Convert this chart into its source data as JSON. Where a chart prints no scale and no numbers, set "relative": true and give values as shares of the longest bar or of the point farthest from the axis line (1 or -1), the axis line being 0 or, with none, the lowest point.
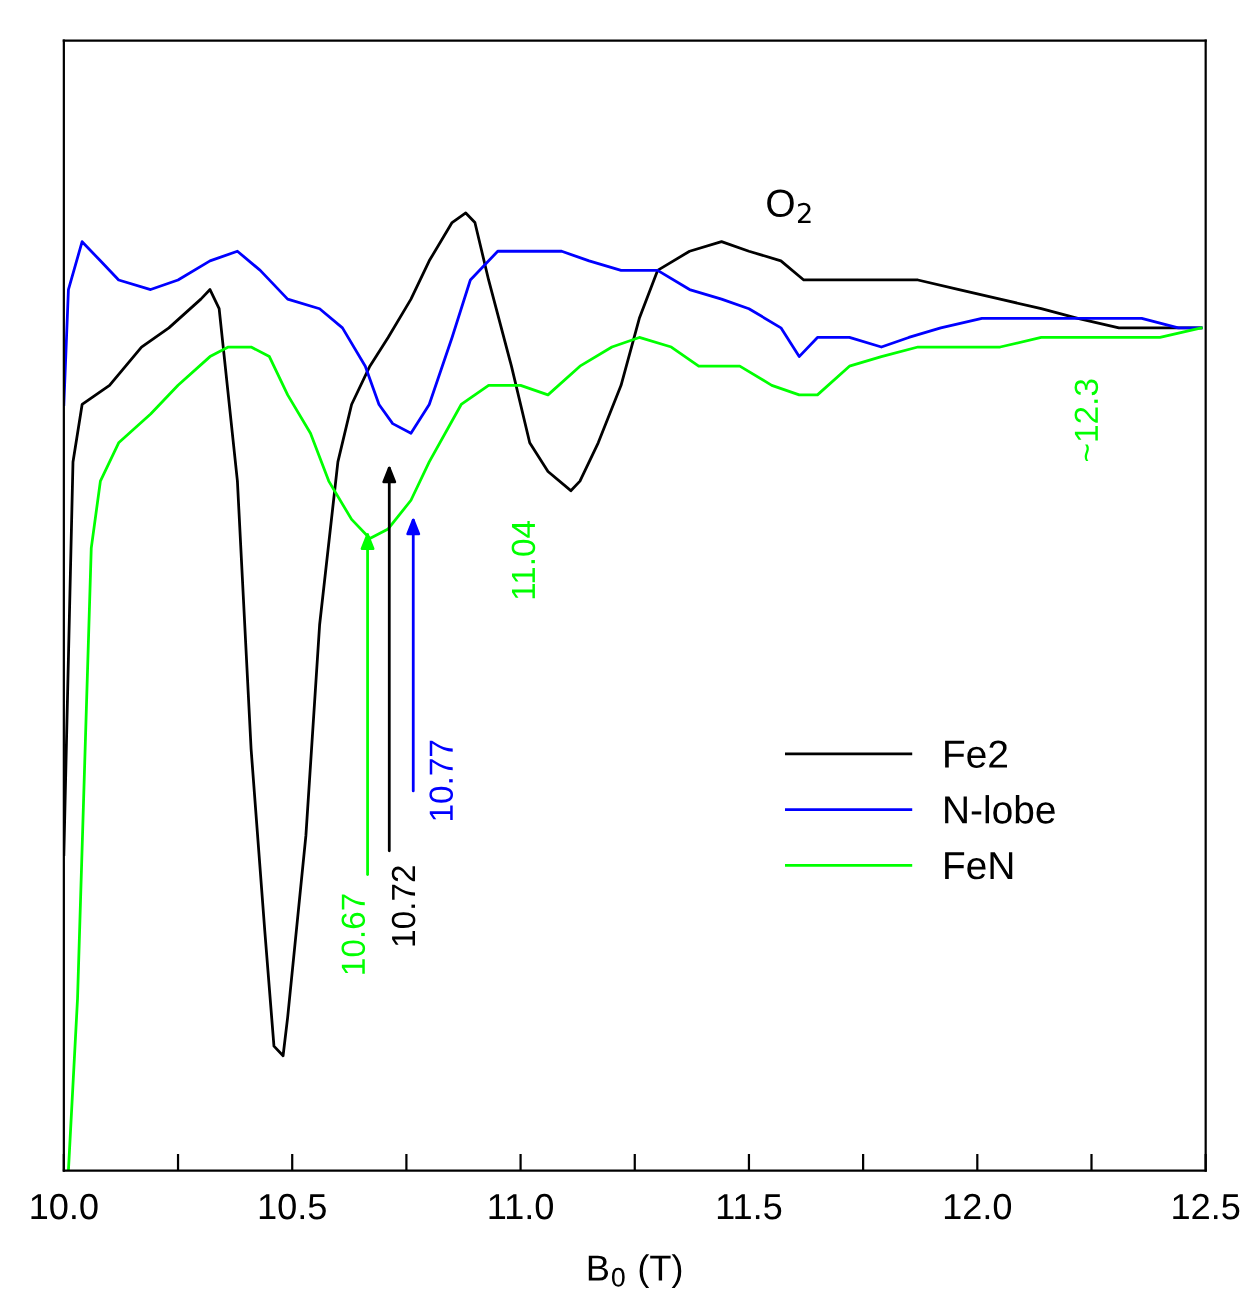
{
  "chart_data": {
    "type": "line",
    "relative": true,
    "xlabel": "B$_{0}$ (T)",
    "xlim": [
      10.0,
      12.5
    ],
    "xticks": [
      {
        "value": 10,
        "label": "10.0"
      },
      {
        "value": 10.25,
        "label": null
      },
      10.5,
      {
        "value": 10.75,
        "label": null
      },
      {
        "value": 11,
        "label": "11.0"
      },
      {
        "value": 11.25,
        "label": null
      },
      11.5,
      {
        "value": 11.75,
        "label": null
      },
      {
        "value": 12,
        "label": "12.0"
      },
      {
        "value": 12.25,
        "label": null
      },
      12.5
    ],
    "tick_labels": "x",
    "grid": false,
    "legend": "bottom right",
    "line_style": "solid",
    "marker": "none",
    "series": [
      {
        "name": "Fe2",
        "color": "#000000",
        "x": [
          10.0,
          10.02,
          10.04,
          10.1,
          10.17,
          10.23,
          10.3,
          10.32,
          10.34,
          10.38,
          10.41,
          10.44,
          10.46,
          10.48,
          10.49,
          10.53,
          10.56,
          10.6,
          10.63,
          10.67,
          10.71,
          10.76,
          10.8,
          10.85,
          10.88,
          10.9,
          10.93,
          10.98,
          11.02,
          11.06,
          11.11,
          11.13,
          11.17,
          11.22,
          11.26,
          11.3,
          11.37,
          11.44,
          11.5,
          11.57,
          11.62,
          11.7,
          11.79,
          11.87,
          11.96,
          12.05,
          12.14,
          12.22,
          12.31,
          12.4,
          12.49
        ],
        "values": [
          0.33,
          0.74,
          0.8,
          0.82,
          0.86,
          0.88,
          0.91,
          0.92,
          0.9,
          0.72,
          0.44,
          0.25,
          0.13,
          0.12,
          0.16,
          0.35,
          0.57,
          0.74,
          0.8,
          0.84,
          0.87,
          0.91,
          0.95,
          0.99,
          1.0,
          0.99,
          0.93,
          0.84,
          0.76,
          0.73,
          0.71,
          0.72,
          0.76,
          0.82,
          0.89,
          0.94,
          0.96,
          0.97,
          0.96,
          0.95,
          0.93,
          0.93,
          0.93,
          0.93,
          0.92,
          0.91,
          0.9,
          0.89,
          0.88,
          0.88,
          0.88
        ]
      },
      {
        "name": "N-lobe",
        "color": "#0000ff",
        "x": [
          10.0,
          10.01,
          10.04,
          10.08,
          10.12,
          10.19,
          10.25,
          10.32,
          10.38,
          10.43,
          10.49,
          10.56,
          10.61,
          10.66,
          10.69,
          10.72,
          10.76,
          10.8,
          10.85,
          10.89,
          10.95,
          11.02,
          11.09,
          11.15,
          11.22,
          11.3,
          11.37,
          11.44,
          11.5,
          11.57,
          11.61,
          11.65,
          11.72,
          11.79,
          11.85,
          11.92,
          12.01,
          12.09,
          12.18,
          12.27,
          12.36,
          12.44,
          12.49
        ],
        "values": [
          0.8,
          0.92,
          0.97,
          0.95,
          0.93,
          0.92,
          0.93,
          0.95,
          0.96,
          0.94,
          0.91,
          0.9,
          0.88,
          0.84,
          0.8,
          0.78,
          0.77,
          0.8,
          0.87,
          0.93,
          0.96,
          0.96,
          0.96,
          0.95,
          0.94,
          0.94,
          0.92,
          0.91,
          0.9,
          0.88,
          0.85,
          0.87,
          0.87,
          0.86,
          0.87,
          0.88,
          0.89,
          0.89,
          0.89,
          0.89,
          0.89,
          0.88,
          0.88
        ]
      },
      {
        "name": "FeN",
        "color": "#00ff00",
        "x": [
          10.01,
          10.03,
          10.06,
          10.08,
          10.12,
          10.19,
          10.25,
          10.32,
          10.36,
          10.41,
          10.45,
          10.49,
          10.54,
          10.58,
          10.63,
          10.67,
          10.71,
          10.76,
          10.8,
          10.87,
          10.93,
          11.0,
          11.06,
          11.13,
          11.2,
          11.26,
          11.33,
          11.39,
          11.48,
          11.55,
          11.61,
          11.65,
          11.72,
          11.79,
          11.87,
          11.96,
          12.05,
          12.14,
          12.22,
          12.31,
          12.4,
          12.49
        ],
        "values": [
          0.0,
          0.18,
          0.65,
          0.72,
          0.76,
          0.79,
          0.82,
          0.85,
          0.86,
          0.86,
          0.85,
          0.81,
          0.77,
          0.72,
          0.68,
          0.66,
          0.67,
          0.7,
          0.74,
          0.8,
          0.82,
          0.82,
          0.81,
          0.84,
          0.86,
          0.87,
          0.86,
          0.84,
          0.84,
          0.82,
          0.81,
          0.81,
          0.84,
          0.85,
          0.86,
          0.86,
          0.86,
          0.87,
          0.87,
          0.87,
          0.87,
          0.88
        ]
      }
    ],
    "annotations": [
      "O$_{2}$",
      "10.67",
      "10.72",
      "10.77",
      "11.04",
      "~12.3"
    ]
  }
}
